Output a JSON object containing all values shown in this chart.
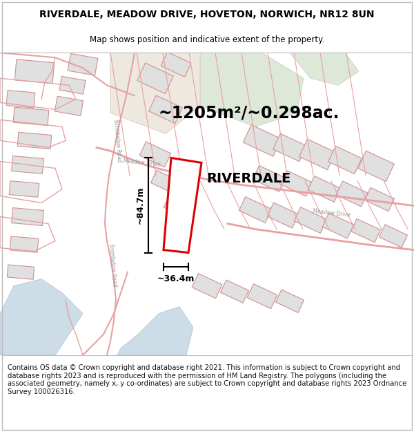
{
  "title": "RIVERDALE, MEADOW DRIVE, HOVETON, NORWICH, NR12 8UN",
  "subtitle": "Map shows position and indicative extent of the property.",
  "area_text": "~1205m²/~0.298ac.",
  "property_name": "RIVERDALE",
  "width_label": "~36.4m",
  "height_label": "~84.7m",
  "footer_text": "Contains OS data © Crown copyright and database right 2021. This information is subject to Crown copyright and database rights 2023 and is reproduced with the permission of HM Land Registry. The polygons (including the associated geometry, namely x, y co-ordinates) are subject to Crown copyright and database rights 2023 Ordnance Survey 100026316.",
  "map_bg": "#ffffff",
  "road_color": "#e8a0a0",
  "road_outline": "#e8a0a0",
  "building_fill": "#e0e0e0",
  "building_edge": "#d09090",
  "water_color": "#ccdde8",
  "green_color": "#d0ddd0",
  "tan_color": "#e8ddd0",
  "property_outline_color": "#dd0000",
  "property_fill": "#ffffff",
  "dim_line_color": "#000000",
  "title_fontsize": 10,
  "subtitle_fontsize": 8.5,
  "area_fontsize": 17,
  "property_name_fontsize": 14,
  "footer_fontsize": 7.2,
  "road_label_color": "#999999",
  "road_label_size": 5.5
}
